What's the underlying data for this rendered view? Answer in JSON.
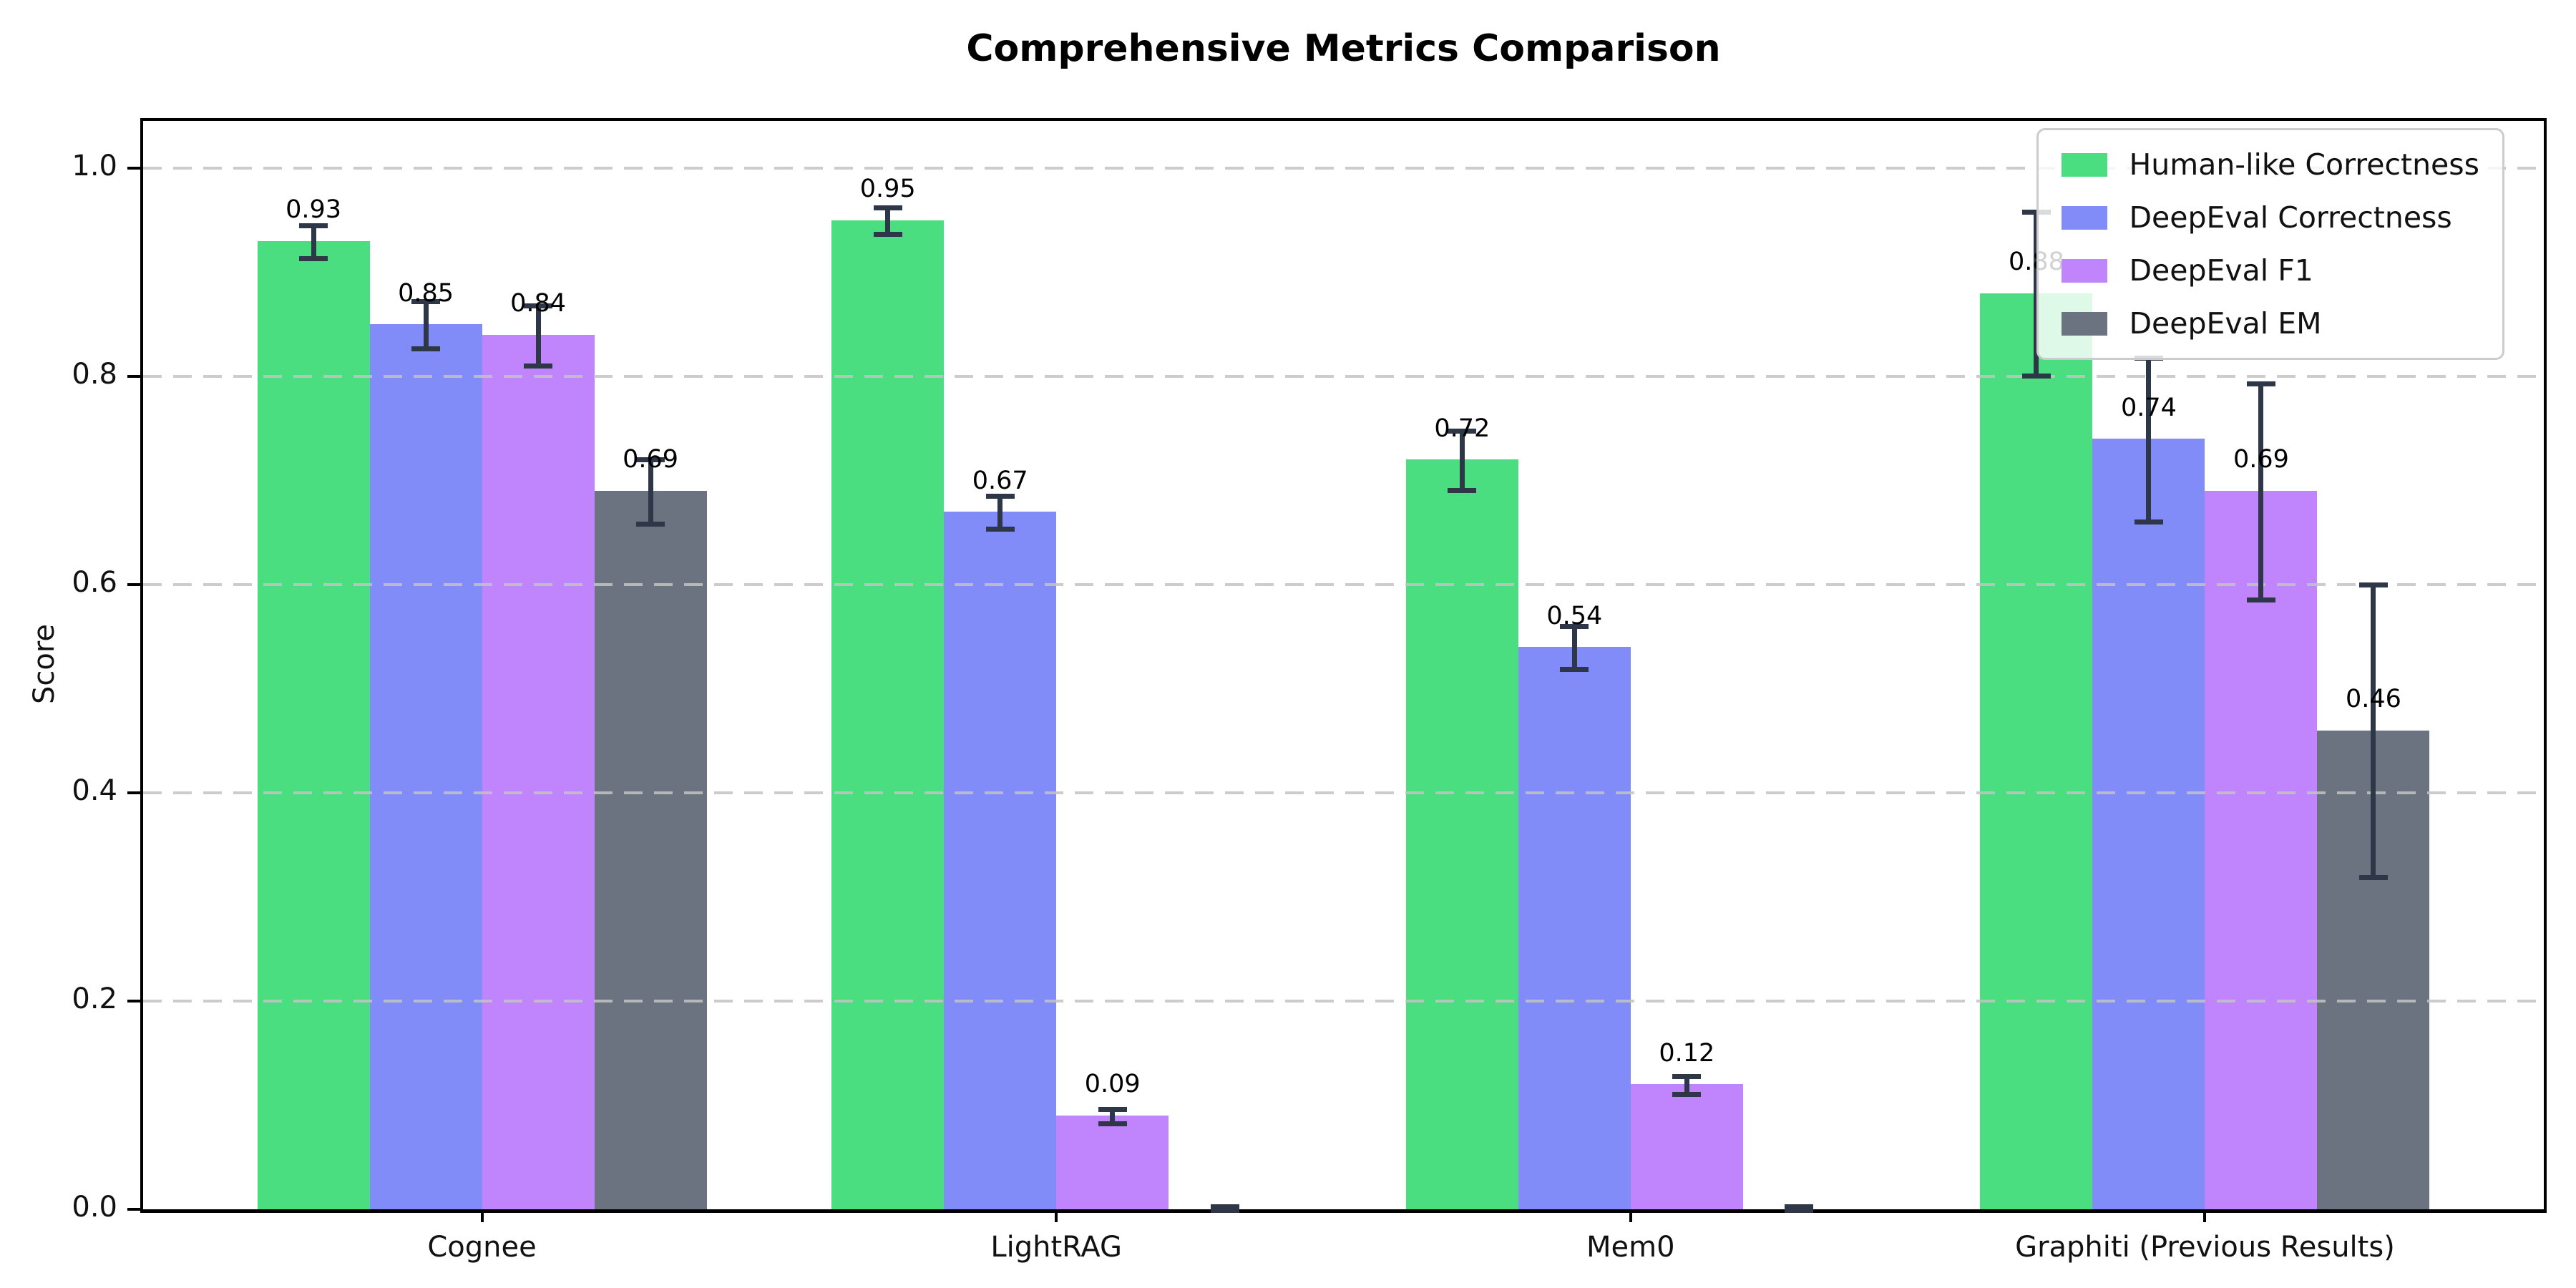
{
  "title": "Comprehensive Metrics Comparison",
  "chart_data": {
    "type": "bar",
    "title": "Comprehensive Metrics Comparison",
    "xlabel": "",
    "ylabel": "Score",
    "categories": [
      "Cognee",
      "LightRAG",
      "Mem0",
      "Graphiti (Previous Results)"
    ],
    "series": [
      {
        "name": "Human-like Correctness",
        "color": "#4ade80",
        "values": [
          0.93,
          0.95,
          0.72,
          0.88
        ],
        "errors": [
          0.015,
          0.012,
          0.028,
          0.078
        ],
        "labels": [
          "0.93",
          "0.95",
          "0.72",
          "0.88"
        ]
      },
      {
        "name": "DeepEval Correctness",
        "color": "#818cf8",
        "values": [
          0.85,
          0.67,
          0.54,
          0.74
        ],
        "errors": [
          0.022,
          0.015,
          0.02,
          0.078
        ],
        "labels": [
          "0.85",
          "0.67",
          "0.54",
          "0.74"
        ]
      },
      {
        "name": "DeepEval F1",
        "color": "#c084fc",
        "values": [
          0.84,
          0.09,
          0.12,
          0.69
        ],
        "errors": [
          0.028,
          0.006,
          0.008,
          0.103
        ],
        "labels": [
          "0.84",
          "0.09",
          "0.12",
          "0.69"
        ]
      },
      {
        "name": "DeepEval EM",
        "color": "#6b7280",
        "values": [
          0.69,
          0.0,
          0.0,
          0.46
        ],
        "errors": [
          0.03,
          0.003,
          0.003,
          0.14
        ],
        "labels": [
          "0.69",
          "",
          "",
          "0.46"
        ]
      }
    ],
    "yticks": [
      0.0,
      0.2,
      0.4,
      0.6,
      0.8,
      1.0
    ],
    "ytick_labels": [
      "0.0",
      "0.2",
      "0.4",
      "0.6",
      "0.8",
      "1.0"
    ],
    "ylim": [
      0,
      1.048
    ],
    "grid": "horizontal-dashed-over-bars",
    "legend_position": "upper right",
    "colors": {
      "error_bar": "#2d3748",
      "axis": "#000000",
      "grid": "#c3c3c3",
      "background": "#ffffff"
    }
  }
}
